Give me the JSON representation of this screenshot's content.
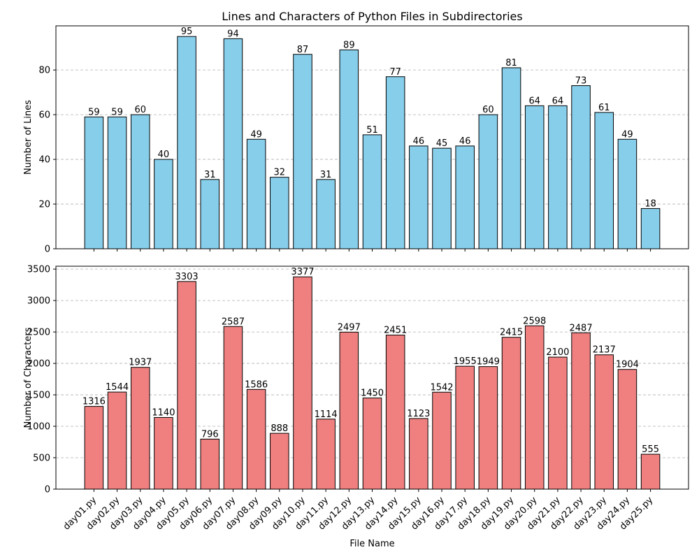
{
  "chart_data": [
    {
      "type": "bar",
      "title": "Lines and Characters of Python Files in Subdirectories",
      "xlabel": "",
      "ylabel": "Number of Lines",
      "color": "#87ceeb",
      "ylim": [
        0,
        99.75
      ],
      "yticks": [
        0,
        20,
        40,
        60,
        80
      ],
      "grid": true,
      "categories": [
        "day01.py",
        "day02.py",
        "day03.py",
        "day04.py",
        "day05.py",
        "day06.py",
        "day07.py",
        "day08.py",
        "day09.py",
        "day10.py",
        "day11.py",
        "day12.py",
        "day13.py",
        "day14.py",
        "day15.py",
        "day16.py",
        "day17.py",
        "day18.py",
        "day19.py",
        "day20.py",
        "day21.py",
        "day22.py",
        "day23.py",
        "day24.py",
        "day25.py"
      ],
      "values": [
        59,
        59,
        60,
        40,
        95,
        31,
        94,
        49,
        32,
        87,
        31,
        89,
        51,
        77,
        46,
        45,
        46,
        60,
        81,
        64,
        64,
        73,
        61,
        49,
        18
      ]
    },
    {
      "type": "bar",
      "title": "",
      "xlabel": "File Name",
      "ylabel": "Number of Characters",
      "color": "#f08080",
      "ylim": [
        0,
        3545.85
      ],
      "yticks": [
        0,
        500,
        1000,
        1500,
        2000,
        2500,
        3000,
        3500
      ],
      "grid": true,
      "categories": [
        "day01.py",
        "day02.py",
        "day03.py",
        "day04.py",
        "day05.py",
        "day06.py",
        "day07.py",
        "day08.py",
        "day09.py",
        "day10.py",
        "day11.py",
        "day12.py",
        "day13.py",
        "day14.py",
        "day15.py",
        "day16.py",
        "day17.py",
        "day18.py",
        "day19.py",
        "day20.py",
        "day21.py",
        "day22.py",
        "day23.py",
        "day24.py",
        "day25.py"
      ],
      "values": [
        1316,
        1544,
        1937,
        1140,
        3303,
        796,
        2587,
        1586,
        888,
        3377,
        1114,
        2497,
        1450,
        2451,
        1123,
        1542,
        1955,
        1949,
        2415,
        2598,
        2100,
        2487,
        2137,
        1904,
        555
      ]
    }
  ]
}
